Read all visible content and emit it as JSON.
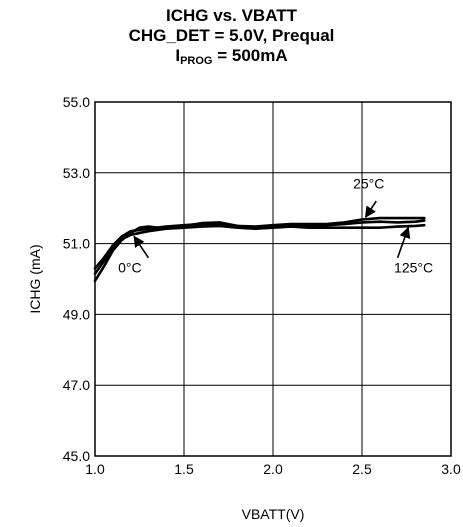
{
  "chart_data": {
    "type": "line",
    "title": "ICHG vs. VBATT",
    "subtitle": "CHG_DET = 5.0V, Prequal",
    "subtitle2_main": "I",
    "subtitle2_sub": "PROG",
    "subtitle2_rest": " = 500mA",
    "xlabel": "VBATT(V)",
    "ylabel": "ICHG (mA)",
    "xlim": [
      1.0,
      3.0
    ],
    "ylim": [
      45.0,
      55.0
    ],
    "x_ticks": [
      "1.0",
      "1.5",
      "2.0",
      "2.5",
      "3.0"
    ],
    "y_ticks": [
      "45.0",
      "47.0",
      "49.0",
      "51.0",
      "53.0",
      "55.0"
    ],
    "grid": true,
    "series": [
      {
        "name": "25°C",
        "color": "#000000",
        "points": [
          [
            1.0,
            50.3
          ],
          [
            1.05,
            50.6
          ],
          [
            1.1,
            50.95
          ],
          [
            1.15,
            51.2
          ],
          [
            1.2,
            51.35
          ],
          [
            1.3,
            51.42
          ],
          [
            1.4,
            51.48
          ],
          [
            1.5,
            51.52
          ],
          [
            1.6,
            51.55
          ],
          [
            1.7,
            51.55
          ],
          [
            1.8,
            51.5
          ],
          [
            1.9,
            51.48
          ],
          [
            2.0,
            51.52
          ],
          [
            2.1,
            51.55
          ],
          [
            2.2,
            51.55
          ],
          [
            2.3,
            51.55
          ],
          [
            2.4,
            51.6
          ],
          [
            2.5,
            51.68
          ],
          [
            2.6,
            51.72
          ],
          [
            2.7,
            51.72
          ],
          [
            2.8,
            51.72
          ],
          [
            2.85,
            51.72
          ]
        ]
      },
      {
        "name": "0°C",
        "color": "#000000",
        "points": [
          [
            1.0,
            49.95
          ],
          [
            1.05,
            50.35
          ],
          [
            1.1,
            50.8
          ],
          [
            1.15,
            51.1
          ],
          [
            1.2,
            51.3
          ],
          [
            1.25,
            51.45
          ],
          [
            1.3,
            51.48
          ],
          [
            1.4,
            51.42
          ],
          [
            1.5,
            51.5
          ],
          [
            1.6,
            51.58
          ],
          [
            1.7,
            51.6
          ],
          [
            1.8,
            51.5
          ],
          [
            1.9,
            51.42
          ],
          [
            2.0,
            51.48
          ],
          [
            2.1,
            51.55
          ],
          [
            2.2,
            51.5
          ],
          [
            2.3,
            51.52
          ],
          [
            2.4,
            51.55
          ],
          [
            2.5,
            51.6
          ],
          [
            2.6,
            51.62
          ],
          [
            2.7,
            51.6
          ],
          [
            2.8,
            51.62
          ],
          [
            2.85,
            51.65
          ]
        ]
      },
      {
        "name": "125°C",
        "color": "#000000",
        "points": [
          [
            1.0,
            50.15
          ],
          [
            1.05,
            50.5
          ],
          [
            1.1,
            50.88
          ],
          [
            1.15,
            51.12
          ],
          [
            1.2,
            51.25
          ],
          [
            1.3,
            51.35
          ],
          [
            1.4,
            51.42
          ],
          [
            1.5,
            51.45
          ],
          [
            1.6,
            51.48
          ],
          [
            1.7,
            51.5
          ],
          [
            1.8,
            51.45
          ],
          [
            1.9,
            51.42
          ],
          [
            2.0,
            51.45
          ],
          [
            2.1,
            51.48
          ],
          [
            2.2,
            51.45
          ],
          [
            2.3,
            51.45
          ],
          [
            2.4,
            51.45
          ],
          [
            2.5,
            51.45
          ],
          [
            2.6,
            51.45
          ],
          [
            2.7,
            51.48
          ],
          [
            2.8,
            51.5
          ],
          [
            2.85,
            51.52
          ]
        ]
      }
    ],
    "annotations": [
      {
        "label": "25°C",
        "text_x": 2.45,
        "text_y": 52.55,
        "arrow_from": [
          2.58,
          52.2
        ],
        "arrow_to": [
          2.52,
          51.75
        ]
      },
      {
        "label": "0°C",
        "text_x": 1.13,
        "text_y": 50.18,
        "arrow_from": [
          1.3,
          50.6
        ],
        "arrow_to": [
          1.22,
          51.2
        ]
      },
      {
        "label": "125°C",
        "text_x": 2.68,
        "text_y": 50.18,
        "arrow_from": [
          2.7,
          50.6
        ],
        "arrow_to": [
          2.76,
          51.45
        ]
      }
    ]
  }
}
